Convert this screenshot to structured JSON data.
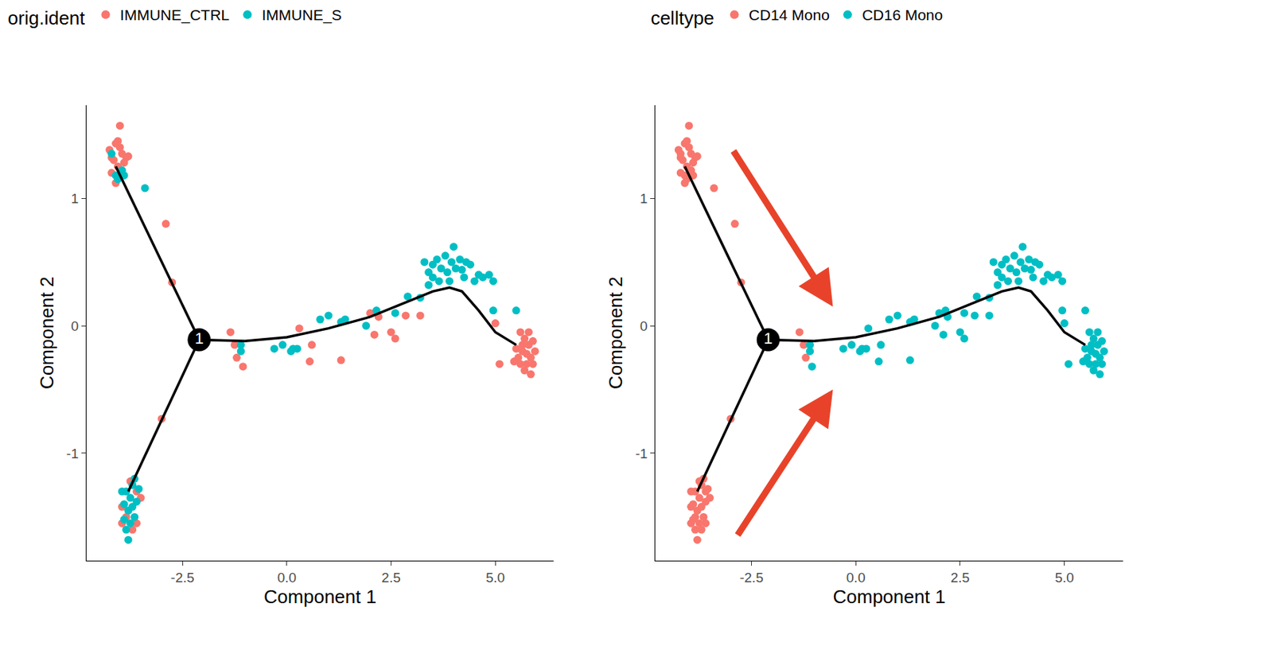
{
  "chart_data": [
    {
      "type": "scatter",
      "legend_title": "orig.ident",
      "x_label": "Component 1",
      "y_label": "Component 2",
      "xlim": [
        -4.8,
        6.4
      ],
      "ylim": [
        -1.84,
        1.73
      ],
      "xticks": [
        -2.5,
        {
          "value": 0,
          "label": "0.0"
        },
        2.5,
        {
          "value": 5,
          "label": "5.0"
        }
      ],
      "yticks": [
        -1,
        0,
        1
      ],
      "grid": false,
      "legend": "top",
      "series": [
        {
          "name": "IMMUNE_CTRL",
          "color": "#F8766D",
          "x": [
            -4.25,
            -4.1,
            -4.0,
            -4.15,
            -3.95,
            -3.85,
            -4.05,
            -4.2,
            -4.1,
            -3.9,
            -3.8,
            -4.0,
            -4.2,
            -3.95,
            -4.05,
            -2.9,
            -2.75,
            -3.95,
            -3.6,
            -3.75,
            -3.85,
            -3.6,
            -3.95,
            -3.7,
            -3.5,
            -3.0,
            -1.35,
            -1.25,
            -1.2,
            -1.05,
            0.6,
            0.55,
            0.3,
            1.3,
            2.0,
            2.2,
            2.5,
            2.6,
            2.85,
            3.2,
            2.1,
            5.0,
            5.1,
            5.6,
            5.7,
            5.8,
            5.9,
            5.65,
            5.55,
            5.75,
            5.85,
            5.95,
            5.6,
            5.7,
            5.85,
            5.5,
            5.8,
            5.65,
            5.9,
            5.45,
            5.75
          ],
          "values": [
            1.38,
            1.43,
            1.57,
            1.3,
            1.35,
            1.32,
            1.25,
            1.2,
            1.12,
            1.28,
            1.33,
            1.4,
            1.32,
            1.2,
            1.45,
            0.8,
            0.34,
            -1.42,
            -1.3,
            -1.22,
            -1.5,
            -1.55,
            -1.55,
            -1.6,
            -1.35,
            -0.73,
            -0.05,
            -0.15,
            -0.25,
            -0.32,
            -0.15,
            -0.28,
            -0.02,
            -0.27,
            0.1,
            0.07,
            -0.05,
            -0.1,
            0.08,
            0.08,
            -0.07,
            0.02,
            -0.3,
            -0.05,
            -0.1,
            -0.15,
            -0.12,
            -0.2,
            -0.25,
            -0.3,
            -0.25,
            -0.2,
            -0.3,
            -0.35,
            -0.38,
            -0.18,
            -0.05,
            -0.15,
            -0.3,
            -0.28,
            -0.22
          ]
        },
        {
          "name": "IMMUNE_S",
          "color": "#00BFC4",
          "x": [
            -4.2,
            -3.95,
            -4.05,
            -3.9,
            -4.1,
            -3.4,
            -3.85,
            -3.75,
            -3.7,
            -3.8,
            -3.9,
            -3.65,
            -3.75,
            -3.85,
            -3.8,
            -3.6,
            -3.55,
            -3.95,
            -3.7,
            -3.9,
            -3.65,
            -1.1,
            -1.1,
            -0.3,
            -0.1,
            0.1,
            0.15,
            0.25,
            0.8,
            1.0,
            1.3,
            1.4,
            1.9,
            2.15,
            2.6,
            3.2,
            2.9,
            3.3,
            3.4,
            3.5,
            3.6,
            3.5,
            3.7,
            3.8,
            3.85,
            3.95,
            4.0,
            4.05,
            4.15,
            4.25,
            4.3,
            4.4,
            4.5,
            4.6,
            4.7,
            4.85,
            4.95,
            3.65,
            3.4,
            4.2,
            3.9,
            4.95,
            5.5
          ],
          "values": [
            1.35,
            1.22,
            1.15,
            1.18,
            1.18,
            1.08,
            -1.3,
            -1.35,
            -1.25,
            -1.45,
            -1.4,
            -1.5,
            -1.55,
            -1.6,
            -1.68,
            -1.38,
            -1.28,
            -1.3,
            -1.42,
            -1.52,
            -1.2,
            -0.15,
            -0.2,
            -0.18,
            -0.15,
            -0.2,
            -0.18,
            -0.18,
            0.05,
            0.08,
            0.03,
            0.05,
            0.0,
            0.12,
            0.1,
            0.22,
            0.23,
            0.5,
            0.42,
            0.48,
            0.52,
            0.38,
            0.45,
            0.55,
            0.42,
            0.5,
            0.62,
            0.45,
            0.52,
            0.38,
            0.5,
            0.48,
            0.35,
            0.4,
            0.38,
            0.4,
            0.35,
            0.35,
            0.32,
            0.44,
            0.35,
            0.12,
            0.12
          ]
        }
      ],
      "trajectory": {
        "x": [
          -4.1,
          -2.1,
          null,
          -3.8,
          -2.1,
          null,
          -2.1,
          -1.0,
          0.0,
          1.0,
          2.0,
          3.0,
          3.5,
          3.9,
          4.2,
          4.6,
          5.0,
          5.5
        ],
        "y": [
          1.25,
          -0.11,
          null,
          -1.3,
          -0.11,
          null,
          -0.11,
          -0.12,
          -0.09,
          -0.02,
          0.07,
          0.2,
          0.27,
          0.3,
          0.27,
          0.12,
          -0.05,
          -0.15
        ]
      },
      "branch_point": {
        "x": -2.1,
        "y": -0.11,
        "label": "1"
      }
    },
    {
      "type": "scatter",
      "legend_title": "celltype",
      "x_label": "Component 1",
      "y_label": "Component 2",
      "xlim": [
        -4.8,
        6.4
      ],
      "ylim": [
        -1.84,
        1.73
      ],
      "xticks": [
        -2.5,
        {
          "value": 0,
          "label": "0.0"
        },
        2.5,
        {
          "value": 5,
          "label": "5.0"
        }
      ],
      "yticks": [
        -1,
        0,
        1
      ],
      "grid": false,
      "legend": "top",
      "series": [
        {
          "name": "CD14 Mono",
          "color": "#F8766D",
          "x": [
            -4.25,
            -4.1,
            -4.0,
            -4.15,
            -3.95,
            -3.85,
            -4.05,
            -4.2,
            -4.1,
            -3.9,
            -3.8,
            -4.0,
            -4.2,
            -3.95,
            -4.05,
            -2.9,
            -2.75,
            -3.95,
            -3.6,
            -3.75,
            -3.85,
            -3.6,
            -3.95,
            -3.7,
            -3.5,
            -3.0,
            -1.35,
            -1.25,
            -1.2,
            -4.2,
            -3.95,
            -4.05,
            -3.9,
            -4.1,
            -3.4,
            -3.85,
            -3.75,
            -3.7,
            -3.8,
            -3.9,
            -3.65,
            -3.75,
            -3.85,
            -3.8,
            -3.6,
            -3.55,
            -3.95,
            -3.7,
            -3.9,
            -3.65
          ],
          "values": [
            1.38,
            1.43,
            1.57,
            1.3,
            1.35,
            1.32,
            1.25,
            1.2,
            1.12,
            1.28,
            1.33,
            1.4,
            1.32,
            1.2,
            1.45,
            0.8,
            0.34,
            -1.42,
            -1.3,
            -1.22,
            -1.5,
            -1.55,
            -1.55,
            -1.6,
            -1.35,
            -0.73,
            -0.05,
            -0.15,
            -0.25,
            1.35,
            1.22,
            1.15,
            1.18,
            1.18,
            1.08,
            -1.3,
            -1.35,
            -1.25,
            -1.45,
            -1.4,
            -1.5,
            -1.55,
            -1.6,
            -1.68,
            -1.38,
            -1.28,
            -1.3,
            -1.42,
            -1.52,
            -1.2
          ]
        },
        {
          "name": "CD16 Mono",
          "color": "#00BFC4",
          "x": [
            -1.05,
            0.6,
            0.55,
            0.3,
            1.3,
            2.0,
            2.2,
            2.5,
            2.6,
            2.85,
            3.2,
            2.1,
            5.0,
            5.1,
            5.6,
            5.7,
            5.8,
            5.9,
            5.65,
            5.55,
            5.75,
            5.85,
            5.95,
            5.6,
            5.7,
            5.85,
            5.5,
            5.8,
            5.65,
            5.9,
            5.45,
            5.75,
            -1.1,
            -1.1,
            -0.3,
            -0.1,
            0.1,
            0.15,
            0.25,
            0.8,
            1.0,
            1.3,
            1.4,
            1.9,
            2.15,
            2.6,
            3.2,
            2.9,
            3.3,
            3.4,
            3.5,
            3.6,
            3.5,
            3.7,
            3.8,
            3.85,
            3.95,
            4.0,
            4.05,
            4.15,
            4.25,
            4.3,
            4.4,
            4.5,
            4.6,
            4.7,
            4.85,
            4.95,
            3.65,
            3.4,
            4.2,
            3.9,
            4.95,
            5.5
          ],
          "values": [
            -0.32,
            -0.15,
            -0.28,
            -0.02,
            -0.27,
            0.1,
            0.07,
            -0.05,
            -0.1,
            0.08,
            0.08,
            -0.07,
            0.02,
            -0.3,
            -0.05,
            -0.1,
            -0.15,
            -0.12,
            -0.2,
            -0.25,
            -0.3,
            -0.25,
            -0.2,
            -0.3,
            -0.35,
            -0.38,
            -0.18,
            -0.05,
            -0.15,
            -0.3,
            -0.28,
            -0.22,
            -0.15,
            -0.2,
            -0.18,
            -0.15,
            -0.2,
            -0.18,
            -0.18,
            0.05,
            0.08,
            0.03,
            0.05,
            0.0,
            0.12,
            0.1,
            0.22,
            0.23,
            0.5,
            0.42,
            0.48,
            0.52,
            0.38,
            0.45,
            0.55,
            0.42,
            0.5,
            0.62,
            0.45,
            0.52,
            0.38,
            0.5,
            0.48,
            0.35,
            0.4,
            0.38,
            0.4,
            0.35,
            0.35,
            0.32,
            0.44,
            0.35,
            0.12,
            0.12
          ]
        }
      ],
      "trajectory": {
        "x": [
          -4.1,
          -2.1,
          null,
          -3.8,
          -2.1,
          null,
          -2.1,
          -1.0,
          0.0,
          1.0,
          2.0,
          3.0,
          3.5,
          3.9,
          4.2,
          4.6,
          5.0,
          5.5
        ],
        "y": [
          1.25,
          -0.11,
          null,
          -1.3,
          -0.11,
          null,
          -0.11,
          -0.12,
          -0.09,
          -0.02,
          0.07,
          0.2,
          0.27,
          0.3,
          0.27,
          0.12,
          -0.05,
          -0.15
        ]
      },
      "branch_point": {
        "x": -2.1,
        "y": -0.11,
        "label": "1"
      }
    }
  ]
}
